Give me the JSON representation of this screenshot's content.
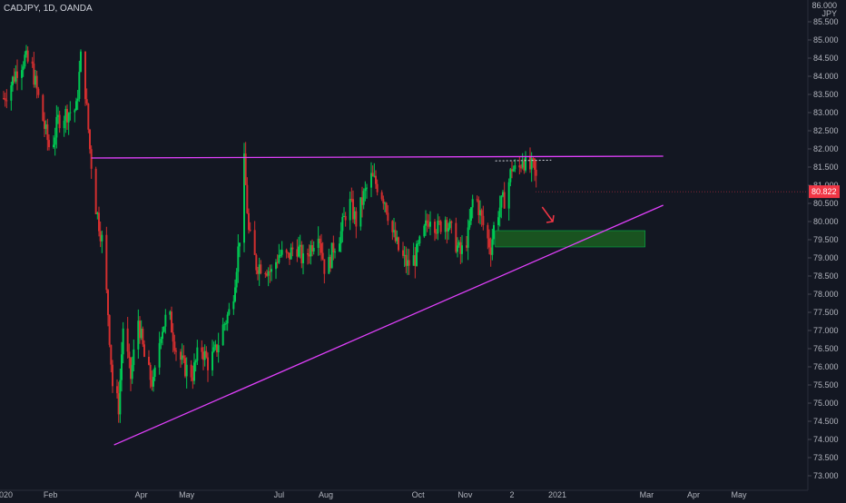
{
  "header": {
    "symbol": "CADJPY, 1D, OANDA",
    "currency": "JPY",
    "top_label": "86.000"
  },
  "colors": {
    "background": "#131722",
    "up": "#26a69a",
    "up_body": "#00c853",
    "down": "#ef5350",
    "down_body": "#d32f2f",
    "trendline": "#e040fb",
    "zone_fill": "#1b5e20",
    "zone_edge": "#00c853",
    "price_tag": "#f23645",
    "arrow": "#f23645",
    "grid": "#1e222d",
    "axis_text": "#b2b5be"
  },
  "price_tag": {
    "value": "80.822"
  },
  "chart_data": {
    "type": "candlestick",
    "title": "CADJPY, 1D, OANDA",
    "ylabel": "JPY",
    "ylim": [
      72.7,
      86.0
    ],
    "y_ticks": [
      "85.500",
      "85.000",
      "84.500",
      "84.000",
      "83.500",
      "83.000",
      "82.500",
      "82.000",
      "81.500",
      "81.000",
      "80.500",
      "80.000",
      "79.500",
      "79.000",
      "78.500",
      "78.000",
      "77.500",
      "77.000",
      "76.500",
      "76.000",
      "75.500",
      "75.000",
      "74.500",
      "74.000",
      "73.500",
      "73.000"
    ],
    "x_ticks": [
      {
        "label": "2020",
        "date": "2020-01-01"
      },
      {
        "label": "Feb",
        "date": "2020-02-01"
      },
      {
        "label": "Apr",
        "date": "2020-04-01"
      },
      {
        "label": "May",
        "date": "2020-05-01"
      },
      {
        "label": "Jul",
        "date": "2020-07-01"
      },
      {
        "label": "Aug",
        "date": "2020-08-01"
      },
      {
        "label": "Oct",
        "date": "2020-10-01"
      },
      {
        "label": "Nov",
        "date": "2020-11-01"
      },
      {
        "label": "2",
        "date": "2020-12-02"
      },
      {
        "label": "2021",
        "date": "2021-01-01"
      },
      {
        "label": "Mar",
        "date": "2021-03-01"
      },
      {
        "label": "Apr",
        "date": "2021-04-01"
      },
      {
        "label": "May",
        "date": "2021-05-01"
      }
    ],
    "price_path": [
      [
        "2020-01-01",
        83.4
      ],
      [
        "2020-01-06",
        83.8
      ],
      [
        "2020-01-10",
        84.2
      ],
      [
        "2020-01-15",
        84.5
      ],
      [
        "2020-01-20",
        84.2
      ],
      [
        "2020-01-24",
        83.4
      ],
      [
        "2020-01-28",
        82.6
      ],
      [
        "2020-02-01",
        81.9
      ],
      [
        "2020-02-06",
        82.8
      ],
      [
        "2020-02-12",
        83.0
      ],
      [
        "2020-02-18",
        83.1
      ],
      [
        "2020-02-21",
        84.5
      ],
      [
        "2020-02-24",
        83.6
      ],
      [
        "2020-02-27",
        82.0
      ],
      [
        "2020-03-02",
        80.4
      ],
      [
        "2020-03-06",
        79.5
      ],
      [
        "2020-03-10",
        77.5
      ],
      [
        "2020-03-13",
        75.5
      ],
      [
        "2020-03-17",
        74.9
      ],
      [
        "2020-03-20",
        77.1
      ],
      [
        "2020-03-25",
        75.7
      ],
      [
        "2020-03-30",
        77.3
      ],
      [
        "2020-04-04",
        76.0
      ],
      [
        "2020-04-09",
        75.5
      ],
      [
        "2020-04-14",
        77.0
      ],
      [
        "2020-04-19",
        77.5
      ],
      [
        "2020-04-24",
        76.5
      ],
      [
        "2020-04-29",
        76.0
      ],
      [
        "2020-05-05",
        75.8
      ],
      [
        "2020-05-10",
        76.6
      ],
      [
        "2020-05-15",
        76.1
      ],
      [
        "2020-05-20",
        76.4
      ],
      [
        "2020-05-25",
        77.1
      ],
      [
        "2020-05-31",
        77.7
      ],
      [
        "2020-06-05",
        79.6
      ],
      [
        "2020-06-08",
        81.6
      ],
      [
        "2020-06-11",
        79.7
      ],
      [
        "2020-06-16",
        78.8
      ],
      [
        "2020-06-21",
        78.8
      ],
      [
        "2020-06-26",
        78.6
      ],
      [
        "2020-07-01",
        79.1
      ],
      [
        "2020-07-07",
        79.0
      ],
      [
        "2020-07-12",
        79.4
      ],
      [
        "2020-07-17",
        78.9
      ],
      [
        "2020-07-22",
        79.3
      ],
      [
        "2020-07-27",
        79.8
      ],
      [
        "2020-08-01",
        78.5
      ],
      [
        "2020-08-06",
        79.3
      ],
      [
        "2020-08-11",
        79.7
      ],
      [
        "2020-08-16",
        80.6
      ],
      [
        "2020-08-21",
        80.0
      ],
      [
        "2020-08-26",
        80.7
      ],
      [
        "2020-08-31",
        81.2
      ],
      [
        "2020-09-04",
        81.0
      ],
      [
        "2020-09-09",
        80.6
      ],
      [
        "2020-09-14",
        79.7
      ],
      [
        "2020-09-19",
        79.1
      ],
      [
        "2020-09-24",
        78.8
      ],
      [
        "2020-09-29",
        79.0
      ],
      [
        "2020-10-04",
        79.6
      ],
      [
        "2020-10-09",
        80.2
      ],
      [
        "2020-10-14",
        79.8
      ],
      [
        "2020-10-19",
        80.1
      ],
      [
        "2020-10-24",
        79.6
      ],
      [
        "2020-10-29",
        79.1
      ],
      [
        "2020-11-03",
        79.6
      ],
      [
        "2020-11-07",
        80.9
      ],
      [
        "2020-11-11",
        80.2
      ],
      [
        "2020-11-15",
        79.6
      ],
      [
        "2020-11-18",
        79.3
      ],
      [
        "2020-11-21",
        80.1
      ],
      [
        "2020-11-24",
        80.4
      ],
      [
        "2020-11-28",
        80.7
      ],
      [
        "2020-12-02",
        81.5
      ],
      [
        "2020-12-06",
        81.3
      ],
      [
        "2020-12-09",
        81.8
      ],
      [
        "2020-12-12",
        81.4
      ],
      [
        "2020-12-16",
        81.5
      ],
      [
        "2020-12-20",
        80.82
      ]
    ],
    "annotations": {
      "resistance_line": {
        "from": [
          "2020-02-28",
          81.75
        ],
        "to": [
          "2021-03-12",
          81.8
        ]
      },
      "support_line": {
        "from": [
          "2020-03-14",
          73.85
        ],
        "to": [
          "2021-03-12",
          80.45
        ]
      },
      "dotted_level": {
        "from": [
          "2020-11-21",
          81.67
        ],
        "to": [
          "2020-12-28",
          81.69
        ]
      },
      "demand_zone": {
        "from": "2020-11-21",
        "to": "2021-02-28",
        "top": 79.75,
        "bottom": 79.3
      },
      "projection_arrow": {
        "from": [
          "2020-12-22",
          80.4
        ],
        "to": [
          "2020-12-29",
          80.0
        ]
      }
    },
    "last_price": 80.822,
    "grid": false,
    "legend": "none"
  }
}
